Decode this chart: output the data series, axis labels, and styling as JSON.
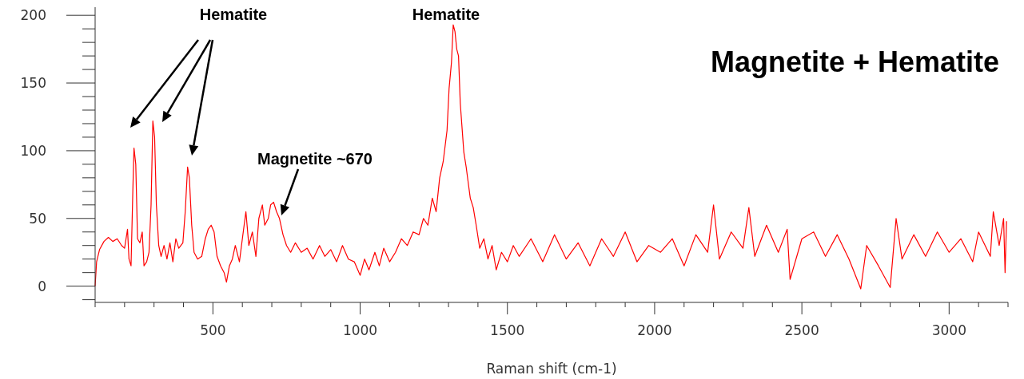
{
  "chart_data": {
    "type": "line",
    "xlabel": "Raman shift (cm-1)",
    "annotations": [
      "Hematite",
      "Hematite",
      "Magnetite ~670",
      "Magnetite + Hematite"
    ],
    "xlim": [
      100,
      3200
    ],
    "ylim": [
      -12,
      206
    ],
    "xticks": [
      {
        "value": 100,
        "label": null
      },
      {
        "value": 200,
        "label": null
      },
      {
        "value": 300,
        "label": null
      },
      {
        "value": 400,
        "label": null
      },
      500,
      {
        "value": 600,
        "label": null
      },
      {
        "value": 700,
        "label": null
      },
      {
        "value": 800,
        "label": null
      },
      {
        "value": 900,
        "label": null
      },
      1000,
      {
        "value": 1100,
        "label": null
      },
      {
        "value": 1200,
        "label": null
      },
      {
        "value": 1300,
        "label": null
      },
      {
        "value": 1400,
        "label": null
      },
      1500,
      {
        "value": 1600,
        "label": null
      },
      {
        "value": 1700,
        "label": null
      },
      {
        "value": 1800,
        "label": null
      },
      {
        "value": 1900,
        "label": null
      },
      2000,
      {
        "value": 2100,
        "label": null
      },
      {
        "value": 2200,
        "label": null
      },
      {
        "value": 2300,
        "label": null
      },
      {
        "value": 2400,
        "label": null
      },
      2500,
      {
        "value": 2600,
        "label": null
      },
      {
        "value": 2700,
        "label": null
      },
      {
        "value": 2800,
        "label": null
      },
      {
        "value": 2900,
        "label": null
      },
      3000,
      {
        "value": 3100,
        "label": null
      },
      {
        "value": 3200,
        "label": null
      }
    ],
    "yticks": [
      {
        "value": -10,
        "label": null
      },
      0,
      {
        "value": 10,
        "label": null
      },
      {
        "value": 20,
        "label": null
      },
      {
        "value": 30,
        "label": null
      },
      {
        "value": 40,
        "label": null
      },
      50,
      {
        "value": 60,
        "label": null
      },
      {
        "value": 70,
        "label": null
      },
      {
        "value": 80,
        "label": null
      },
      {
        "value": 90,
        "label": null
      },
      100,
      {
        "value": 110,
        "label": null
      },
      {
        "value": 120,
        "label": null
      },
      {
        "value": 130,
        "label": null
      },
      {
        "value": 140,
        "label": null
      },
      150,
      {
        "value": 160,
        "label": null
      },
      {
        "value": 170,
        "label": null
      },
      {
        "value": 180,
        "label": null
      },
      {
        "value": 190,
        "label": null
      },
      200
    ],
    "marker": "none",
    "line_style": "solid",
    "series": [
      {
        "color": "#ff0000",
        "x": [
          100,
          105,
          115,
          130,
          145,
          160,
          175,
          190,
          200,
          210,
          215,
          222,
          228,
          232,
          238,
          244,
          252,
          260,
          266,
          275,
          283,
          290,
          296,
          302,
          308,
          316,
          324,
          334,
          344,
          354,
          364,
          374,
          384,
          398,
          406,
          414,
          420,
          428,
          436,
          448,
          462,
          474,
          484,
          494,
          504,
          514,
          526,
          538,
          546,
          556,
          566,
          576,
          590,
          600,
          612,
          622,
          634,
          646,
          656,
          668,
          676,
          688,
          696,
          706,
          716,
          726,
          738,
          750,
          764,
          780,
          800,
          820,
          840,
          862,
          880,
          900,
          920,
          940,
          960,
          980,
          1000,
          1015,
          1030,
          1050,
          1065,
          1080,
          1100,
          1120,
          1140,
          1160,
          1180,
          1200,
          1215,
          1230,
          1245,
          1258,
          1270,
          1282,
          1295,
          1302,
          1310,
          1316,
          1322,
          1328,
          1334,
          1340,
          1345,
          1352,
          1360,
          1366,
          1374,
          1384,
          1394,
          1406,
          1420,
          1434,
          1448,
          1462,
          1480,
          1500,
          1520,
          1540,
          1580,
          1620,
          1660,
          1700,
          1740,
          1780,
          1820,
          1860,
          1900,
          1940,
          1980,
          2020,
          2060,
          2100,
          2140,
          2180,
          2200,
          2220,
          2260,
          2300,
          2320,
          2340,
          2380,
          2420,
          2450,
          2460,
          2500,
          2540,
          2580,
          2620,
          2660,
          2700,
          2720,
          2760,
          2800,
          2820,
          2840,
          2880,
          2920,
          2960,
          3000,
          3040,
          3080,
          3100,
          3140,
          3150,
          3170,
          3185,
          3190,
          3195
        ],
        "values": [
          0,
          18,
          27,
          33,
          36,
          33,
          35,
          30,
          28,
          42,
          20,
          15,
          70,
          102,
          90,
          35,
          32,
          40,
          15,
          18,
          25,
          60,
          122,
          110,
          60,
          30,
          22,
          30,
          20,
          32,
          18,
          35,
          28,
          32,
          55,
          88,
          80,
          45,
          25,
          20,
          22,
          35,
          42,
          45,
          40,
          22,
          15,
          10,
          3,
          15,
          20,
          30,
          18,
          35,
          55,
          30,
          40,
          22,
          50,
          60,
          45,
          50,
          60,
          62,
          55,
          50,
          38,
          30,
          25,
          32,
          25,
          28,
          20,
          30,
          22,
          27,
          18,
          30,
          20,
          18,
          8,
          20,
          12,
          25,
          15,
          28,
          18,
          25,
          35,
          30,
          40,
          38,
          50,
          45,
          65,
          55,
          80,
          92,
          115,
          146,
          165,
          193,
          188,
          175,
          170,
          135,
          120,
          99,
          88,
          78,
          65,
          58,
          45,
          28,
          35,
          20,
          30,
          12,
          25,
          18,
          30,
          22,
          35,
          18,
          38,
          20,
          32,
          15,
          35,
          22,
          40,
          18,
          30,
          25,
          35,
          15,
          38,
          25,
          60,
          20,
          40,
          28,
          58,
          22,
          45,
          25,
          42,
          5,
          35,
          40,
          22,
          38,
          20,
          -2,
          30,
          15,
          -1,
          50,
          20,
          38,
          22,
          40,
          25,
          35,
          18,
          40,
          22,
          55,
          30,
          50,
          10,
          48
        ]
      }
    ]
  }
}
